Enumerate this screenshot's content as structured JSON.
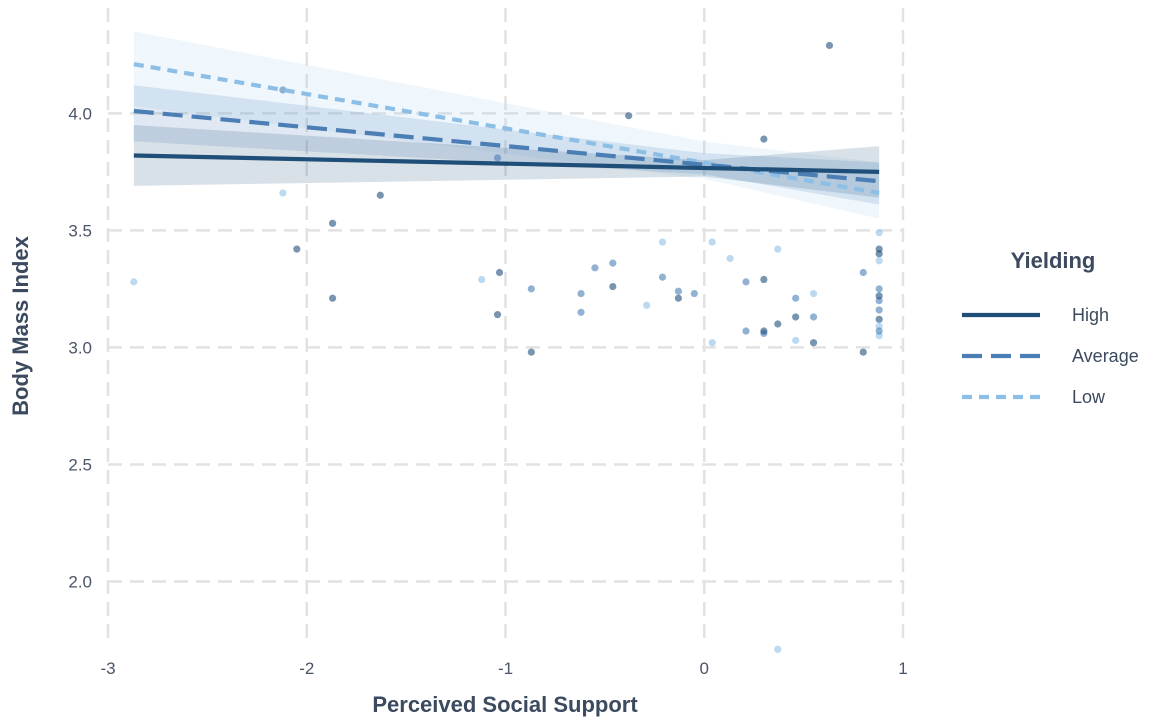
{
  "chart_data": {
    "type": "scatter",
    "title": "",
    "xlabel": "Perceived Social Support",
    "ylabel": "Body Mass Index",
    "xlim": [
      -3,
      1
    ],
    "ylim": [
      1.75,
      4.45
    ],
    "xticks": [
      -3,
      -2,
      -1,
      0,
      1
    ],
    "xtick_labels": [
      "-3",
      "-2",
      "-1",
      "0",
      "1"
    ],
    "yticks": [
      2.0,
      2.5,
      3.0,
      3.5,
      4.0
    ],
    "ytick_labels": [
      "2.0",
      "2.5",
      "3.0",
      "3.5",
      "4.0"
    ],
    "grid": true,
    "legend": {
      "title": "Yielding",
      "placement": "right"
    },
    "series": [
      {
        "name": "High",
        "color": "#1f4e79",
        "dash": "solid",
        "band_color": "#1f4e79",
        "line": {
          "x": [
            -2.87,
            0.88
          ],
          "y": [
            3.82,
            3.75
          ]
        },
        "band": {
          "x": [
            -2.87,
            0.0,
            0.88
          ],
          "lower": [
            3.69,
            3.73,
            3.64
          ],
          "upper": [
            3.95,
            3.8,
            3.86
          ]
        },
        "points": [
          [
            -2.05,
            3.42
          ],
          [
            -1.87,
            3.53
          ],
          [
            -1.87,
            3.21
          ],
          [
            -1.63,
            3.65
          ],
          [
            -1.03,
            3.32
          ],
          [
            -1.04,
            3.14
          ],
          [
            -0.87,
            2.98
          ],
          [
            -0.46,
            3.26
          ],
          [
            -0.38,
            3.99
          ],
          [
            -0.13,
            3.21
          ],
          [
            0.3,
            3.89
          ],
          [
            0.3,
            3.29
          ],
          [
            0.3,
            3.07
          ],
          [
            0.37,
            3.1
          ],
          [
            0.46,
            3.13
          ],
          [
            0.55,
            3.02
          ],
          [
            0.63,
            4.29
          ],
          [
            0.8,
            2.98
          ],
          [
            0.88,
            3.42
          ],
          [
            0.88,
            3.4
          ],
          [
            0.88,
            3.22
          ],
          [
            0.88,
            3.12
          ]
        ]
      },
      {
        "name": "Average",
        "color": "#4a7eb5",
        "dash": "long",
        "band_color": "#4a7eb5",
        "line": {
          "x": [
            -2.87,
            0.88
          ],
          "y": [
            4.01,
            3.71
          ]
        },
        "band": {
          "x": [
            -2.87,
            0.0,
            0.88
          ],
          "lower": [
            3.88,
            3.74,
            3.61
          ],
          "upper": [
            4.12,
            3.83,
            3.79
          ]
        },
        "points": [
          [
            -2.12,
            4.1
          ],
          [
            -1.04,
            3.81
          ],
          [
            -0.87,
            3.25
          ],
          [
            -0.55,
            3.34
          ],
          [
            -0.62,
            3.15
          ],
          [
            -0.62,
            3.23
          ],
          [
            -0.46,
            3.36
          ],
          [
            -0.21,
            3.3
          ],
          [
            -0.13,
            3.24
          ],
          [
            -0.05,
            3.23
          ],
          [
            0.21,
            3.28
          ],
          [
            0.21,
            3.07
          ],
          [
            0.3,
            3.06
          ],
          [
            0.46,
            3.21
          ],
          [
            0.55,
            3.13
          ],
          [
            0.8,
            3.32
          ],
          [
            0.88,
            3.25
          ],
          [
            0.88,
            3.2
          ],
          [
            0.88,
            3.16
          ],
          [
            0.88,
            3.07
          ]
        ]
      },
      {
        "name": "Low",
        "color": "#8dbfe6",
        "dash": "short",
        "band_color": "#a9d0f0",
        "line": {
          "x": [
            -2.87,
            0.88
          ],
          "y": [
            4.21,
            3.66
          ]
        },
        "band": {
          "x": [
            -2.87,
            0.0,
            0.88
          ],
          "lower": [
            4.03,
            3.72,
            3.55
          ],
          "upper": [
            4.35,
            3.88,
            3.79
          ]
        },
        "points": [
          [
            -2.87,
            3.28
          ],
          [
            -2.12,
            3.66
          ],
          [
            -1.12,
            3.29
          ],
          [
            -0.21,
            3.45
          ],
          [
            -0.29,
            3.18
          ],
          [
            0.04,
            3.45
          ],
          [
            0.13,
            3.38
          ],
          [
            0.04,
            3.02
          ],
          [
            0.37,
            3.42
          ],
          [
            0.46,
            3.03
          ],
          [
            0.55,
            3.23
          ],
          [
            0.37,
            1.71
          ],
          [
            0.88,
            3.49
          ],
          [
            0.88,
            3.37
          ],
          [
            0.88,
            3.09
          ],
          [
            0.88,
            3.05
          ]
        ]
      }
    ]
  }
}
